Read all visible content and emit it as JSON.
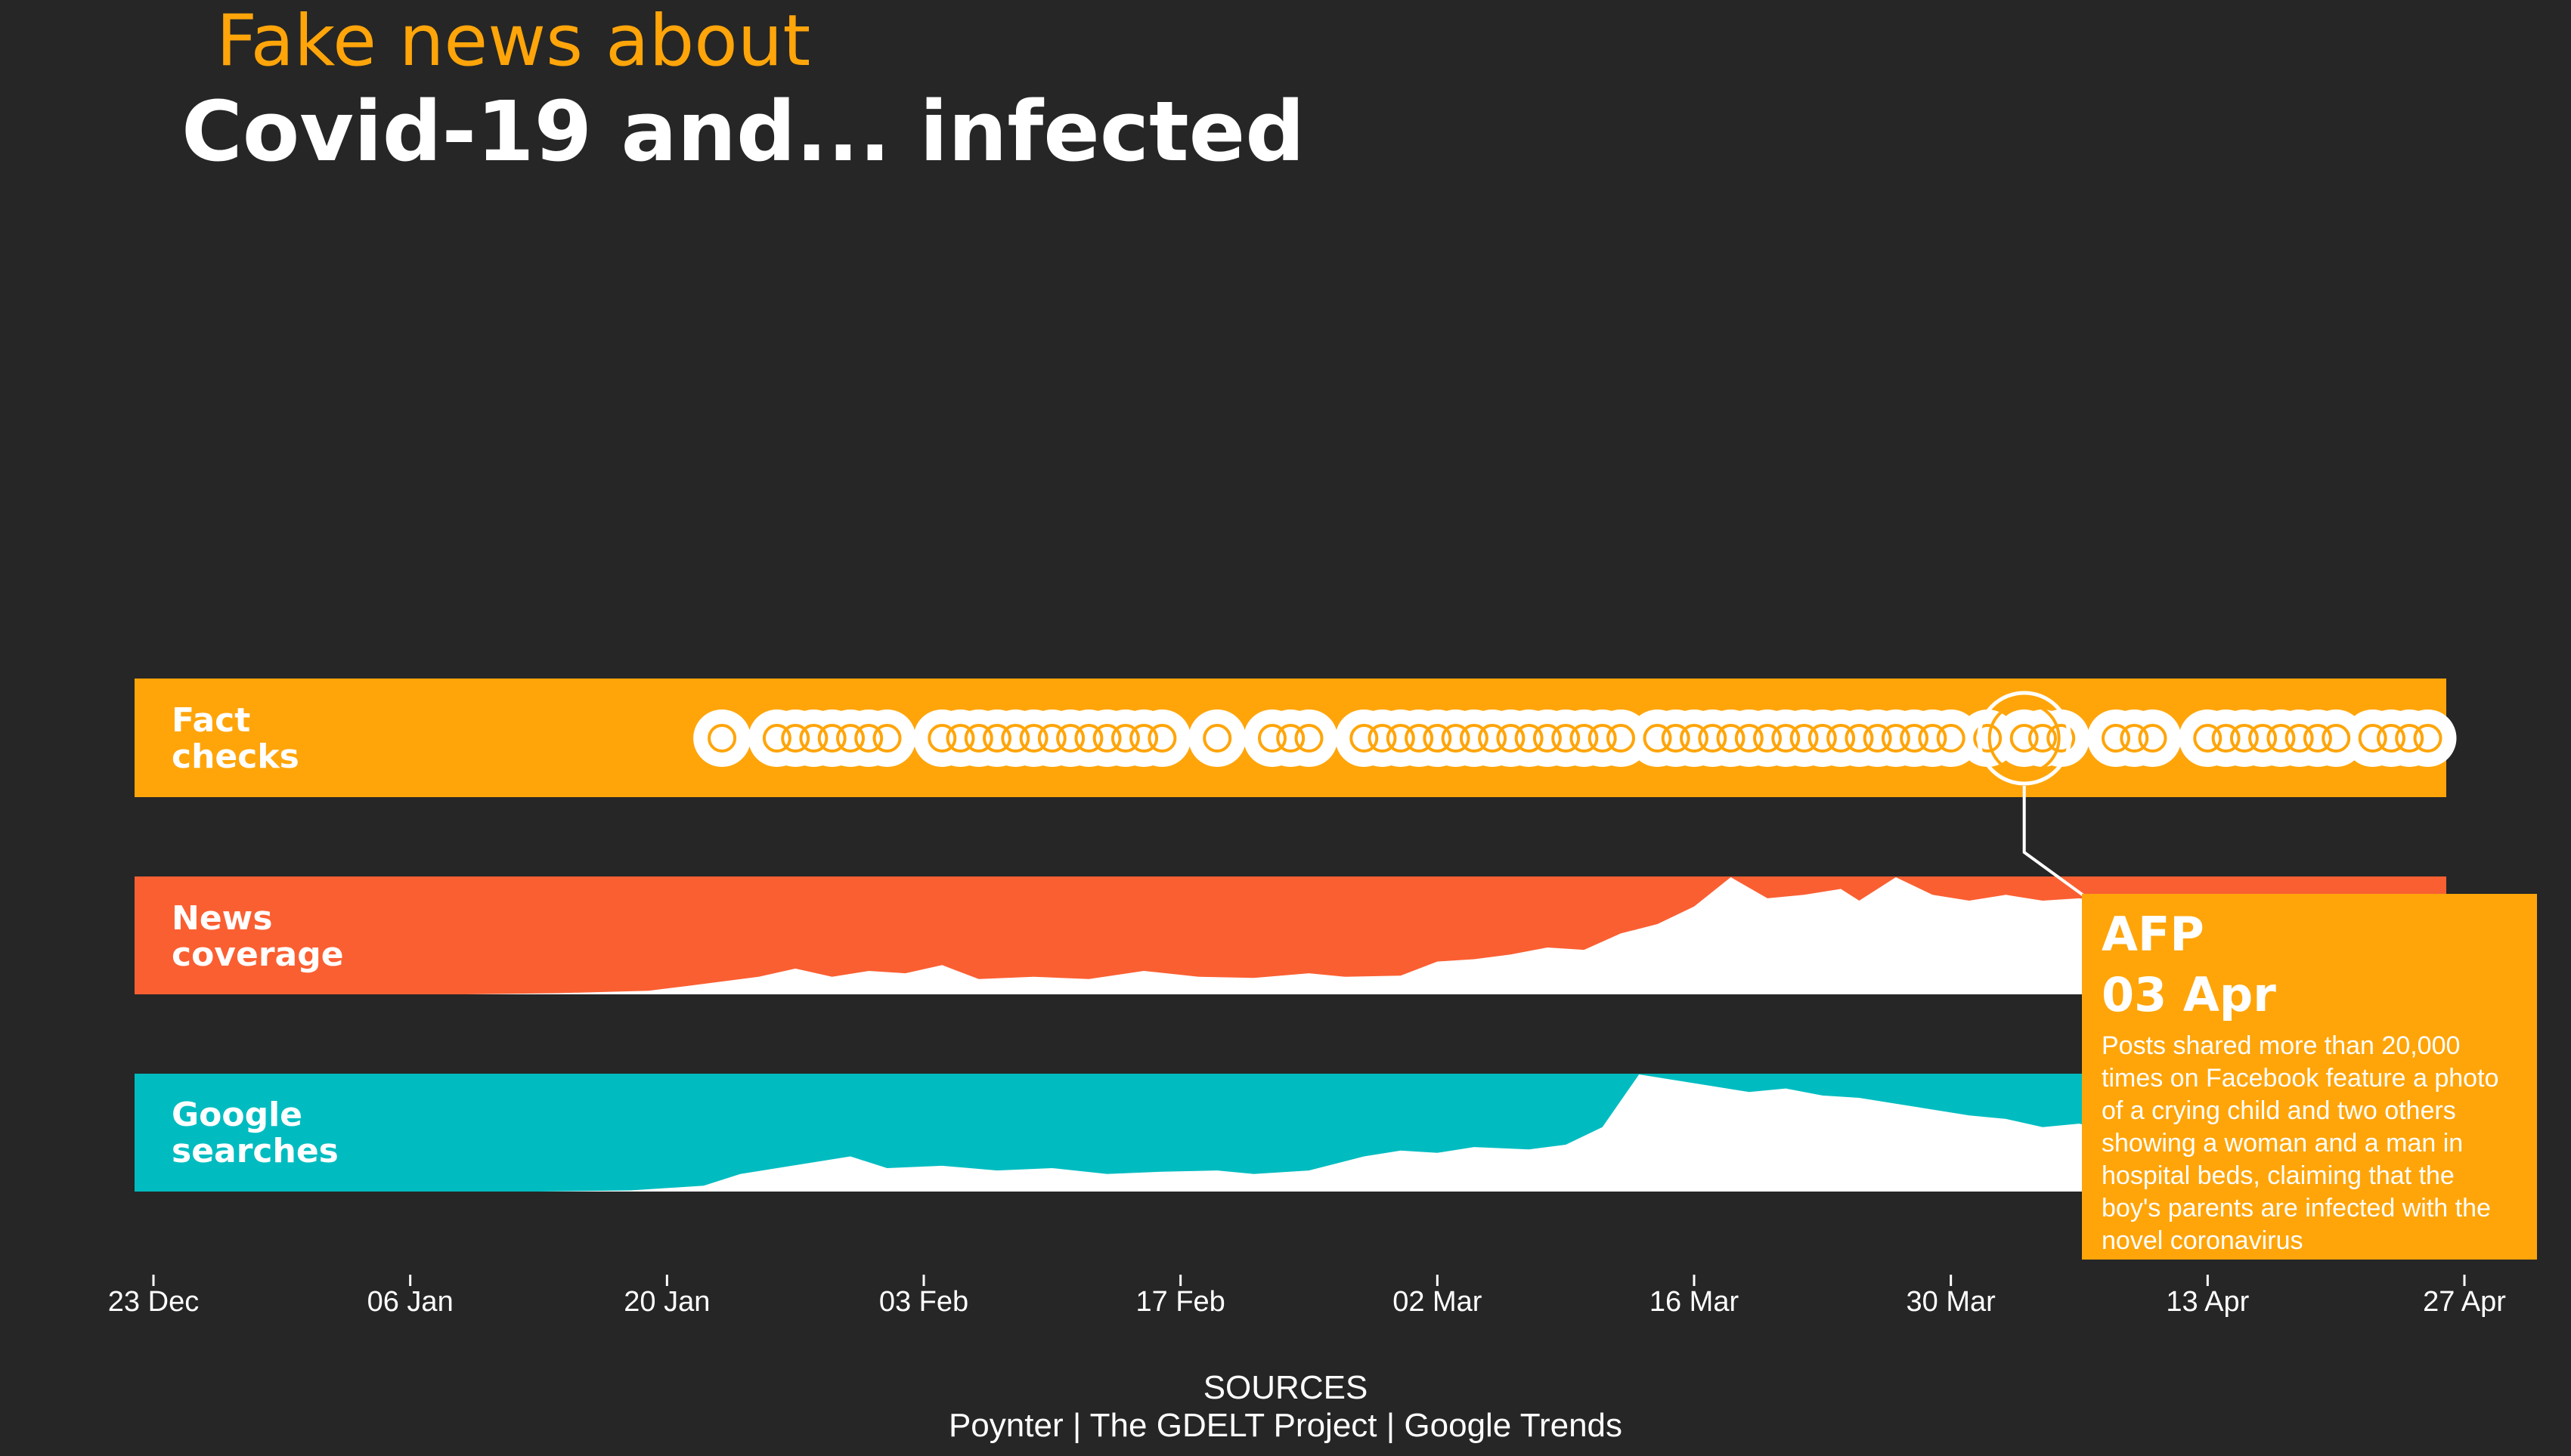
{
  "title": {
    "line1": "Fake news about",
    "line2": "Covid-19 and... infected"
  },
  "bands": {
    "fact_checks": {
      "label_line1": "Fact",
      "label_line2": "checks"
    },
    "news": {
      "label_line1": "News",
      "label_line2": "coverage"
    },
    "google": {
      "label_line1": "Google",
      "label_line2": "searches"
    }
  },
  "colors": {
    "background": "#262626",
    "fact_checks": "#FFA50A",
    "news": "#FA5F32",
    "google": "#00BCC0",
    "fill": "#FFFFFF"
  },
  "x_ticks": [
    "23 Dec",
    "06 Jan",
    "20 Jan",
    "03 Feb",
    "17 Feb",
    "02 Mar",
    "16 Mar",
    "30 Mar",
    "13 Apr",
    "27 Apr"
  ],
  "tooltip": {
    "source": "AFP",
    "date": "03 Apr",
    "text": "Posts shared more than 20,000 times on Facebook feature a photo of a crying child and two others showing a woman and a man in hospital beds, claiming that the boy's parents are infected with the novel coronavirus"
  },
  "sources": {
    "heading": "SOURCES",
    "text": "Poynter | The GDELT Project | Google Trends"
  },
  "chart_data": {
    "type": "area",
    "x_axis": {
      "start": "2019-12-23",
      "end": "2020-04-27",
      "ticks": [
        "23 Dec",
        "06 Jan",
        "20 Jan",
        "03 Feb",
        "17 Feb",
        "02 Mar",
        "16 Mar",
        "30 Mar",
        "13 Apr",
        "27 Apr"
      ]
    },
    "highlighted_fact_check": "2020-04-03",
    "fact_checks": [
      "2020-01-23",
      "2020-01-26",
      "2020-01-27",
      "2020-01-28",
      "2020-01-29",
      "2020-01-30",
      "2020-01-31",
      "2020-02-01",
      "2020-02-04",
      "2020-02-05",
      "2020-02-06",
      "2020-02-07",
      "2020-02-08",
      "2020-02-09",
      "2020-02-10",
      "2020-02-11",
      "2020-02-12",
      "2020-02-13",
      "2020-02-14",
      "2020-02-15",
      "2020-02-16",
      "2020-02-19",
      "2020-02-22",
      "2020-02-23",
      "2020-02-24",
      "2020-02-27",
      "2020-02-28",
      "2020-02-29",
      "2020-03-01",
      "2020-03-02",
      "2020-03-03",
      "2020-03-04",
      "2020-03-05",
      "2020-03-06",
      "2020-03-07",
      "2020-03-08",
      "2020-03-09",
      "2020-03-10",
      "2020-03-11",
      "2020-03-12",
      "2020-03-14",
      "2020-03-15",
      "2020-03-16",
      "2020-03-17",
      "2020-03-18",
      "2020-03-19",
      "2020-03-20",
      "2020-03-21",
      "2020-03-22",
      "2020-03-23",
      "2020-03-24",
      "2020-03-25",
      "2020-03-26",
      "2020-03-27",
      "2020-03-28",
      "2020-03-29",
      "2020-03-30",
      "2020-04-01",
      "2020-04-03",
      "2020-04-04",
      "2020-04-05",
      "2020-04-08",
      "2020-04-09",
      "2020-04-10",
      "2020-04-13",
      "2020-04-14",
      "2020-04-15",
      "2020-04-16",
      "2020-04-17",
      "2020-04-18",
      "2020-04-19",
      "2020-04-20",
      "2020-04-22",
      "2020-04-23",
      "2020-04-24",
      "2020-04-25"
    ],
    "news_coverage": {
      "y_range": [
        0,
        100
      ],
      "points": [
        [
          "2020-01-09",
          0
        ],
        [
          "2020-01-14",
          1
        ],
        [
          "2020-01-19",
          3
        ],
        [
          "2020-01-21",
          7
        ],
        [
          "2020-01-25",
          15
        ],
        [
          "2020-01-27",
          22
        ],
        [
          "2020-01-29",
          15
        ],
        [
          "2020-01-31",
          20
        ],
        [
          "2020-02-02",
          18
        ],
        [
          "2020-02-04",
          25
        ],
        [
          "2020-02-06",
          13
        ],
        [
          "2020-02-09",
          15
        ],
        [
          "2020-02-12",
          13
        ],
        [
          "2020-02-15",
          20
        ],
        [
          "2020-02-18",
          15
        ],
        [
          "2020-02-21",
          14
        ],
        [
          "2020-02-24",
          18
        ],
        [
          "2020-02-26",
          15
        ],
        [
          "2020-02-29",
          16
        ],
        [
          "2020-03-02",
          28
        ],
        [
          "2020-03-04",
          30
        ],
        [
          "2020-03-06",
          34
        ],
        [
          "2020-03-08",
          40
        ],
        [
          "2020-03-10",
          38
        ],
        [
          "2020-03-12",
          52
        ],
        [
          "2020-03-14",
          60
        ],
        [
          "2020-03-16",
          75
        ],
        [
          "2020-03-18",
          100
        ],
        [
          "2020-03-20",
          82
        ],
        [
          "2020-03-22",
          85
        ],
        [
          "2020-03-24",
          90
        ],
        [
          "2020-03-25",
          80
        ],
        [
          "2020-03-27",
          100
        ],
        [
          "2020-03-29",
          85
        ],
        [
          "2020-03-31",
          80
        ],
        [
          "2020-04-02",
          85
        ],
        [
          "2020-04-04",
          80
        ],
        [
          "2020-04-06",
          82
        ],
        [
          "2020-04-08",
          78
        ],
        [
          "2020-04-10",
          80
        ],
        [
          "2020-04-12",
          75
        ]
      ]
    },
    "google_searches": {
      "y_range": [
        0,
        100
      ],
      "points": [
        [
          "2020-01-13",
          0
        ],
        [
          "2020-01-18",
          1
        ],
        [
          "2020-01-22",
          5
        ],
        [
          "2020-01-24",
          15
        ],
        [
          "2020-01-26",
          20
        ],
        [
          "2020-01-28",
          25
        ],
        [
          "2020-01-30",
          30
        ],
        [
          "2020-02-01",
          20
        ],
        [
          "2020-02-04",
          22
        ],
        [
          "2020-02-07",
          18
        ],
        [
          "2020-02-10",
          20
        ],
        [
          "2020-02-13",
          15
        ],
        [
          "2020-02-16",
          17
        ],
        [
          "2020-02-19",
          18
        ],
        [
          "2020-02-21",
          15
        ],
        [
          "2020-02-24",
          18
        ],
        [
          "2020-02-27",
          30
        ],
        [
          "2020-02-29",
          35
        ],
        [
          "2020-03-02",
          33
        ],
        [
          "2020-03-04",
          38
        ],
        [
          "2020-03-07",
          36
        ],
        [
          "2020-03-09",
          40
        ],
        [
          "2020-03-11",
          55
        ],
        [
          "2020-03-13",
          100
        ],
        [
          "2020-03-15",
          95
        ],
        [
          "2020-03-17",
          90
        ],
        [
          "2020-03-19",
          85
        ],
        [
          "2020-03-21",
          88
        ],
        [
          "2020-03-23",
          82
        ],
        [
          "2020-03-25",
          80
        ],
        [
          "2020-03-27",
          75
        ],
        [
          "2020-03-29",
          70
        ],
        [
          "2020-03-31",
          65
        ],
        [
          "2020-04-02",
          62
        ],
        [
          "2020-04-04",
          55
        ],
        [
          "2020-04-06",
          58
        ],
        [
          "2020-04-08",
          50
        ],
        [
          "2020-04-10",
          48
        ],
        [
          "2020-04-12",
          45
        ]
      ]
    }
  }
}
